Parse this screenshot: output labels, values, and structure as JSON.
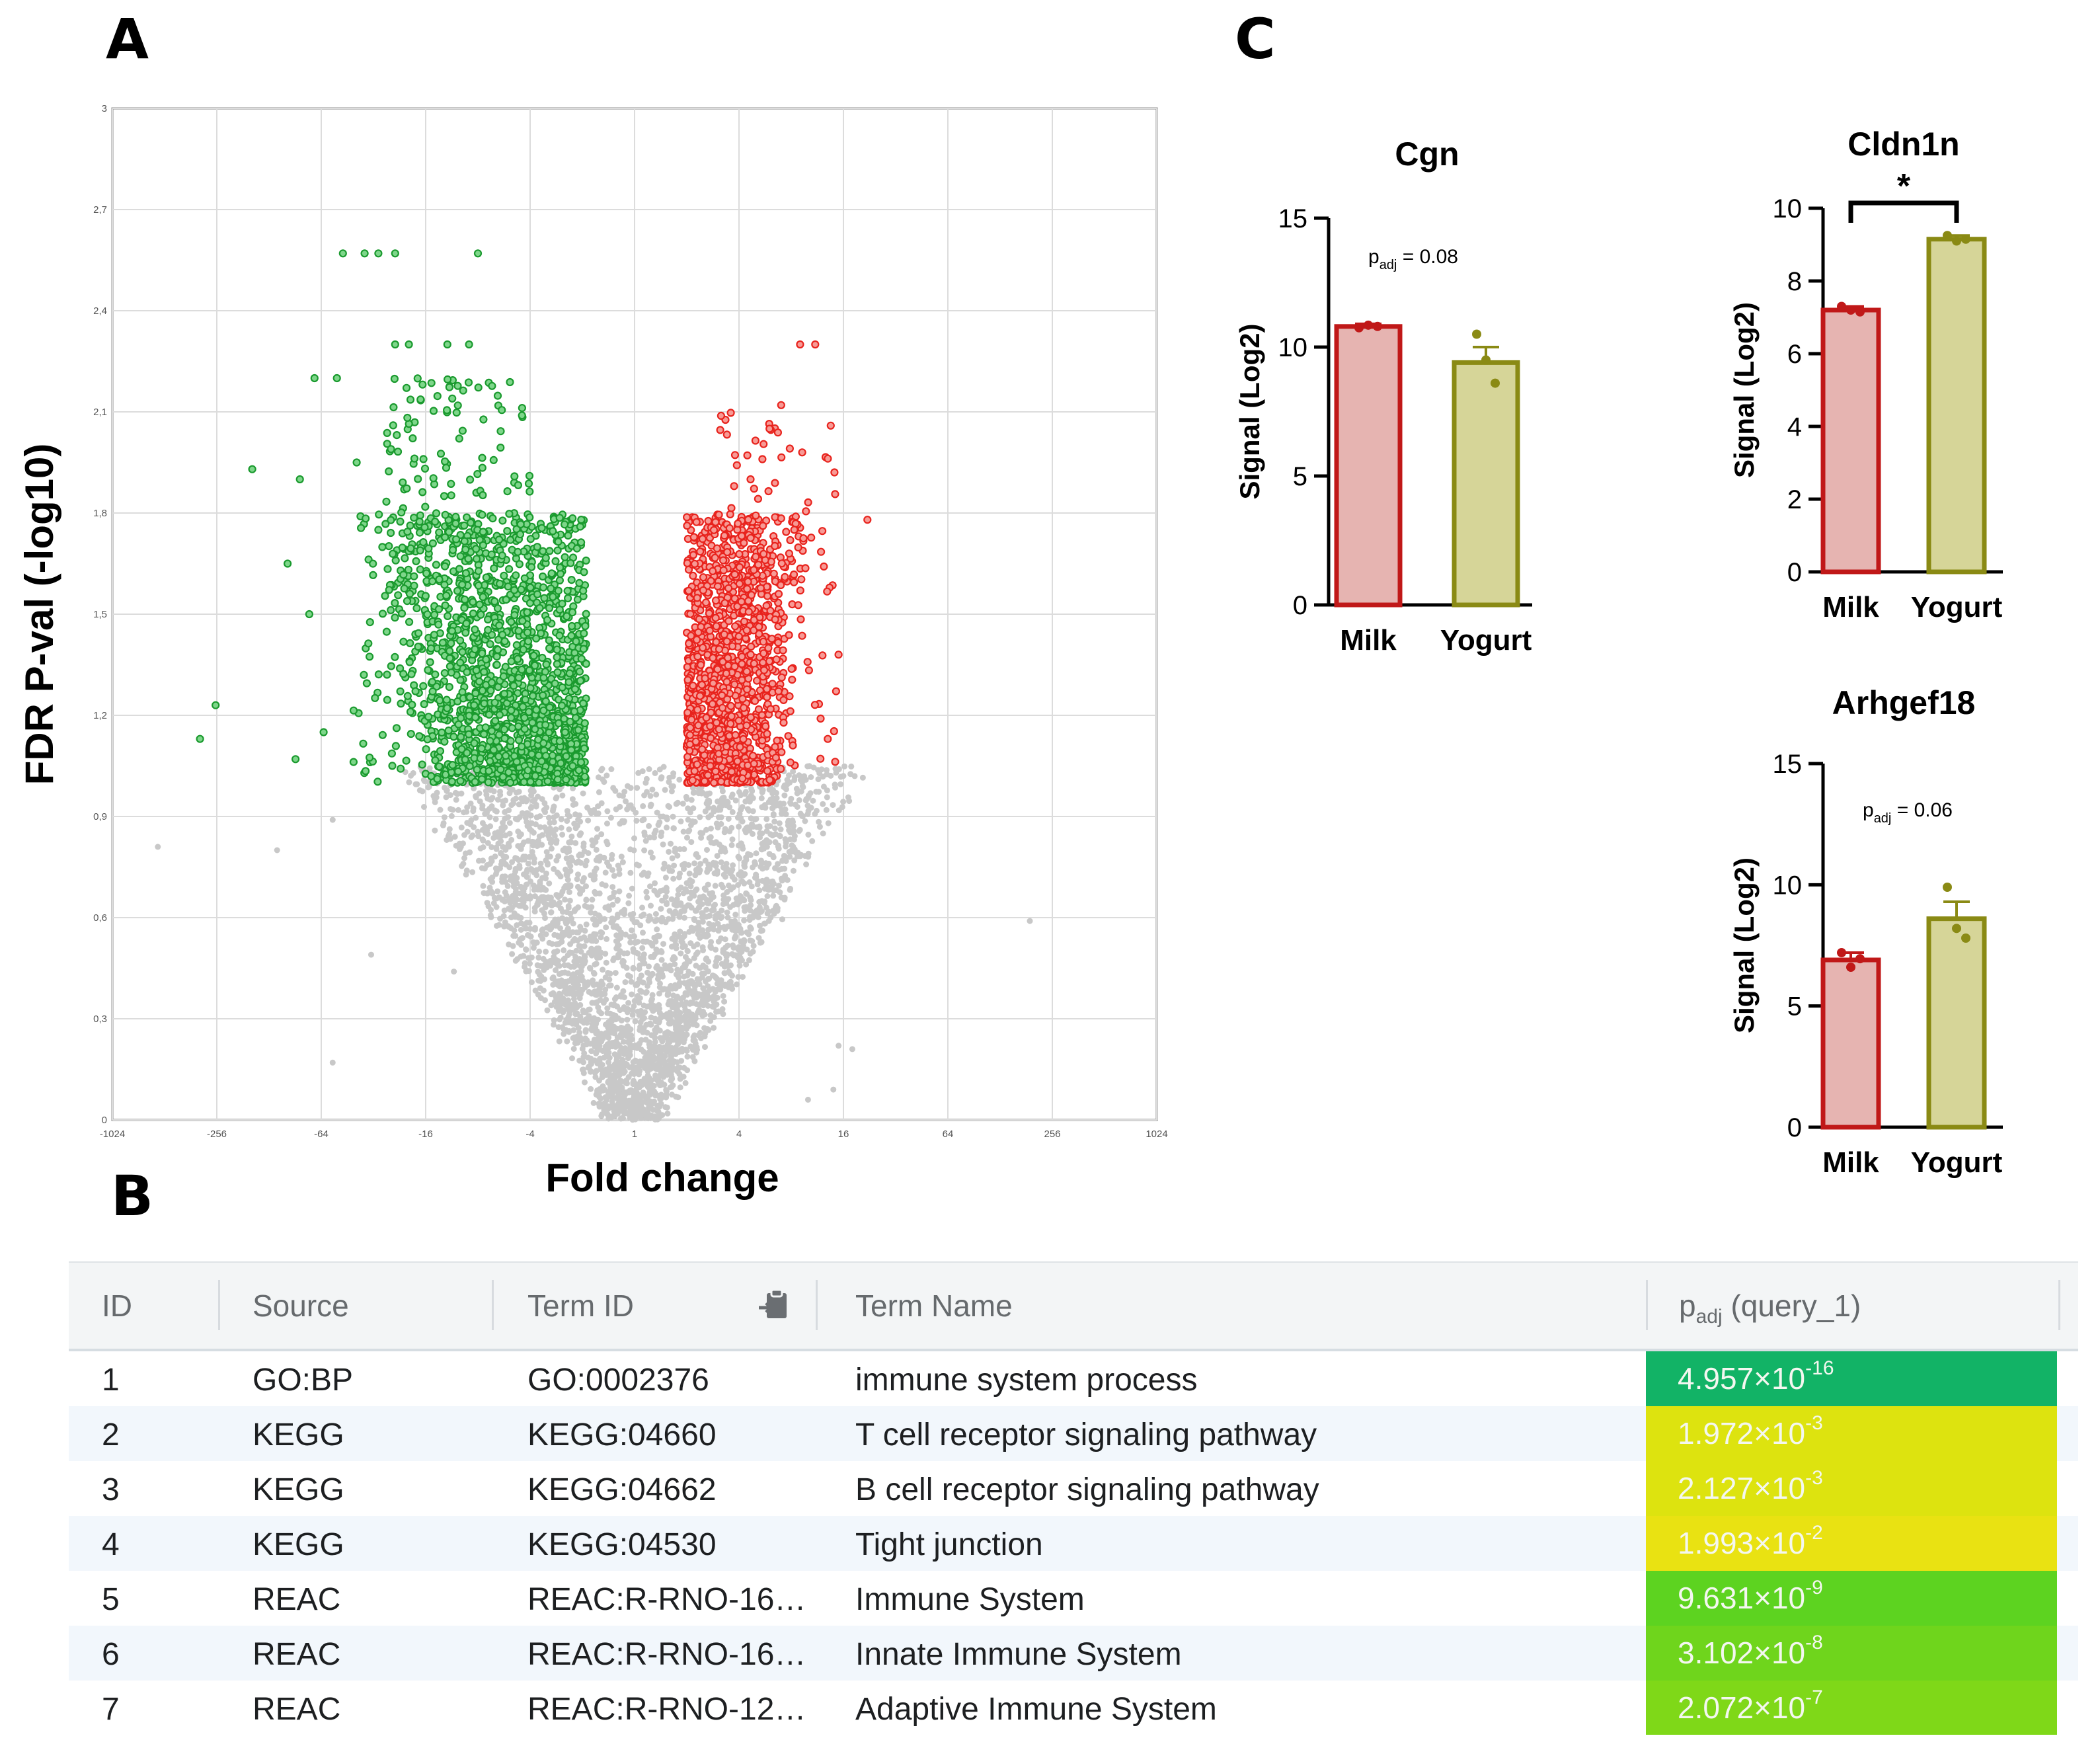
{
  "panels": {
    "a": "A",
    "b": "B",
    "c": "C"
  },
  "chart_data": [
    {
      "type": "scatter",
      "panel": "A",
      "xlabel": "Fold change",
      "ylabel": "FDR P-val (-log10)",
      "xscale": "log2 symmetric",
      "xticks": [
        "-1024",
        "-256",
        "-64",
        "-16",
        "-4",
        "1",
        "4",
        "16",
        "64",
        "256",
        "1024"
      ],
      "yticks": [
        "0",
        "0,3",
        "0,6",
        "0,9",
        "1,2",
        "1,5",
        "1,8",
        "2,1",
        "2,4",
        "2,7",
        "3"
      ],
      "ylim": [
        0,
        3
      ],
      "grid": true,
      "colors": {
        "down": "#1a9a2e",
        "up": "#e8231d",
        "ns": "#c8c8c8"
      },
      "series": [
        {
          "group": "down",
          "points": [
            [
              -48,
              2.57
            ],
            [
              -36,
              2.57
            ],
            [
              -30,
              2.57
            ],
            [
              -24,
              2.57
            ],
            [
              -8,
              2.57
            ],
            [
              -24,
              2.3
            ],
            [
              -20,
              2.3
            ],
            [
              -12,
              2.3
            ],
            [
              -9,
              2.3
            ],
            [
              -70,
              2.2
            ],
            [
              -52,
              2.2
            ],
            [
              -160,
              1.93
            ],
            [
              -85,
              1.9
            ],
            [
              -100,
              1.65
            ],
            [
              -75,
              1.5
            ],
            [
              -320,
              1.13
            ],
            [
              -260,
              1.23
            ],
            [
              -62,
              1.15
            ],
            [
              -90,
              1.07
            ],
            [
              -40,
              1.95
            ],
            [
              -30,
              1.75
            ]
          ]
        },
        {
          "group": "up",
          "points": [
            [
              9,
              2.3
            ],
            [
              11,
              2.3
            ],
            [
              22,
              1.78
            ],
            [
              15,
              1.38
            ],
            [
              13,
              1.13
            ],
            [
              6,
              2.05
            ],
            [
              7,
              2.12
            ]
          ]
        },
        {
          "group": "ns",
          "points": [
            [
              -560,
              0.81
            ],
            [
              -115,
              0.8
            ],
            [
              -55,
              0.89
            ],
            [
              -33,
              0.49
            ],
            [
              -55,
              0.17
            ],
            [
              -11,
              0.44
            ],
            [
              190,
              0.59
            ],
            [
              15,
              0.22
            ],
            [
              18,
              0.21
            ],
            [
              14,
              0.09
            ],
            [
              10,
              0.06
            ]
          ]
        }
      ]
    },
    {
      "type": "bar",
      "panel": "C",
      "title": "Cgn",
      "ylabel": "Signal (Log2)",
      "categories": [
        "Milk",
        "Yogurt"
      ],
      "values": [
        10.8,
        9.4
      ],
      "errors": [
        0.1,
        0.6
      ],
      "points": [
        [
          10.75,
          10.85,
          10.8
        ],
        [
          10.5,
          9.5,
          8.6
        ]
      ],
      "ylim": [
        0,
        15
      ],
      "yticks": [
        "0",
        "5",
        "10",
        "15"
      ],
      "annotation": {
        "p": "p",
        "sub": "adj",
        "rest": " = 0.08"
      }
    },
    {
      "type": "bar",
      "panel": "C",
      "title": "Cldn1n",
      "ylabel": "Signal (Log2)",
      "categories": [
        "Milk",
        "Yogurt"
      ],
      "values": [
        7.2,
        9.15
      ],
      "errors": [
        0.1,
        0.1
      ],
      "points": [
        [
          7.3,
          7.2,
          7.15
        ],
        [
          9.25,
          9.1,
          9.15
        ]
      ],
      "ylim": [
        0,
        10
      ],
      "yticks": [
        "0",
        "2",
        "4",
        "6",
        "8",
        "10"
      ],
      "significance": "*"
    },
    {
      "type": "bar",
      "panel": "C",
      "title": "Arhgef18",
      "ylabel": "Signal (Log2)",
      "categories": [
        "Milk",
        "Yogurt"
      ],
      "values": [
        6.9,
        8.6
      ],
      "errors": [
        0.3,
        0.7
      ],
      "points": [
        [
          7.2,
          6.6,
          6.95
        ],
        [
          9.9,
          8.2,
          7.8
        ]
      ],
      "ylim": [
        0,
        15
      ],
      "yticks": [
        "0",
        "5",
        "10",
        "15"
      ],
      "annotation": {
        "p": "p",
        "sub": "adj",
        "rest": " = 0.06"
      }
    }
  ],
  "bar_colors": {
    "milk_fill": "#e6b4b1",
    "milk_edge": "#c01818",
    "yogurt_fill": "#d6d598",
    "yogurt_edge": "#8a8a14"
  },
  "table": {
    "headers": {
      "id": "ID",
      "source": "Source",
      "term_id": "Term ID",
      "term_name": "Term Name",
      "p_main": "p",
      "p_sub": "adj",
      "p_rest": " (query_1)"
    },
    "copy_icon": "clipboard-export-icon",
    "rows": [
      {
        "id": "1",
        "source": "GO:BP",
        "term_id": "GO:0002376",
        "term_name": "immune system process",
        "mant": "4.957×10",
        "exp": "-16",
        "color": "#12b366"
      },
      {
        "id": "2",
        "source": "KEGG",
        "term_id": "KEGG:04660",
        "term_name": "T cell receptor signaling pathway",
        "mant": "1.972×10",
        "exp": "-3",
        "color": "#dde30f"
      },
      {
        "id": "3",
        "source": "KEGG",
        "term_id": "KEGG:04662",
        "term_name": "B cell receptor signaling pathway",
        "mant": "2.127×10",
        "exp": "-3",
        "color": "#dde30f"
      },
      {
        "id": "4",
        "source": "KEGG",
        "term_id": "KEGG:04530",
        "term_name": "Tight junction",
        "mant": "1.993×10",
        "exp": "-2",
        "color": "#e9e212"
      },
      {
        "id": "5",
        "source": "REAC",
        "term_id": "REAC:R-RNO-16…",
        "term_name": "Immune System",
        "mant": "9.631×10",
        "exp": "-9",
        "color": "#5dd320"
      },
      {
        "id": "6",
        "source": "REAC",
        "term_id": "REAC:R-RNO-16…",
        "term_name": "Innate Immune System",
        "mant": "3.102×10",
        "exp": "-8",
        "color": "#6fd51c"
      },
      {
        "id": "7",
        "source": "REAC",
        "term_id": "REAC:R-RNO-12…",
        "term_name": "Adaptive Immune System",
        "mant": "2.072×10",
        "exp": "-7",
        "color": "#7fd818"
      }
    ]
  }
}
